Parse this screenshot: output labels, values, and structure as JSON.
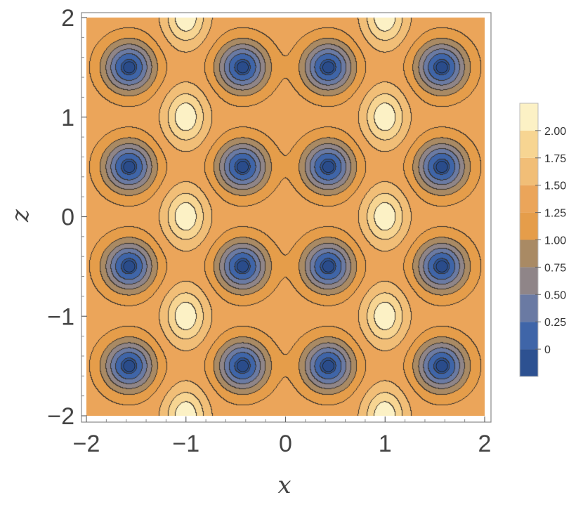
{
  "chart_data": {
    "type": "heatmap",
    "subtype": "contour",
    "title": "",
    "xlabel": "x",
    "ylabel": "z",
    "xlim": [
      -2,
      2
    ],
    "ylim": [
      -2,
      2
    ],
    "x_ticks": [
      -2,
      -1,
      0,
      1,
      2
    ],
    "y_ticks": [
      -2,
      -1,
      0,
      1,
      2
    ],
    "x_tick_labels": [
      "−2",
      "−1",
      "0",
      "1",
      "2"
    ],
    "y_tick_labels": [
      "−2",
      "−1",
      "0",
      "1",
      "2"
    ],
    "grid": false,
    "contour_levels": [
      -0.25,
      0,
      0.25,
      0.5,
      0.75,
      1.0,
      1.25,
      1.5,
      1.75,
      2.0,
      2.25
    ],
    "band_colors": [
      "#2d5191",
      "#3f65a8",
      "#6a7aa3",
      "#8f8588",
      "#a98a64",
      "#e59d4a",
      "#eba55a",
      "#f1be77",
      "#f7d592",
      "#fcf1c5"
    ],
    "minima": {
      "x": [
        -1.57,
        -0.43,
        0.43,
        1.57
      ],
      "z": [
        -1.5,
        -0.5,
        0.5,
        1.5
      ],
      "value": -0.15
    },
    "maxima": {
      "x": [
        -1,
        1
      ],
      "z": [
        -2,
        -1,
        0,
        1,
        2
      ],
      "value": 2.2
    },
    "saddle_value": 1.35,
    "legend": {
      "placement": "right",
      "tick_values": [
        0,
        0.25,
        0.5,
        0.75,
        1.0,
        1.25,
        1.5,
        1.75,
        2.0
      ],
      "tick_labels": [
        "0",
        "0.25",
        "0.50",
        "0.75",
        "1.00",
        "1.25",
        "1.50",
        "1.75",
        "2.00"
      ]
    }
  }
}
